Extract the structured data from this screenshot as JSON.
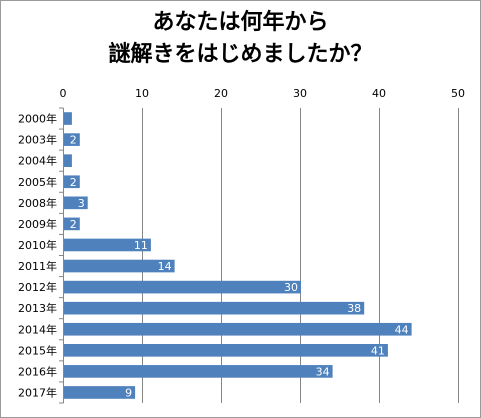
{
  "chart_data": {
    "type": "bar",
    "orientation": "horizontal",
    "title_lines": [
      "あなたは何年から",
      "謎解きをはじめましたか？"
    ],
    "xlabel": "",
    "ylabel": "",
    "xlim": [
      0,
      50
    ],
    "x_ticks": [
      0,
      10,
      20,
      30,
      40,
      50
    ],
    "x_axis_position": "top",
    "grid": true,
    "legend": "none",
    "bar_color": "#4f81bd",
    "categories": [
      "2000年",
      "2003年",
      "2004年",
      "2005年",
      "2008年",
      "2009年",
      "2010年",
      "2011年",
      "2012年",
      "2013年",
      "2014年",
      "2015年",
      "2016年",
      "2017年"
    ],
    "values": [
      1,
      2,
      1,
      2,
      3,
      2,
      11,
      14,
      30,
      38,
      44,
      41,
      34,
      9
    ],
    "data_labels": [
      "",
      "2",
      "",
      "2",
      "3",
      "2",
      "11",
      "14",
      "30",
      "38",
      "44",
      "41",
      "34",
      "9"
    ]
  }
}
